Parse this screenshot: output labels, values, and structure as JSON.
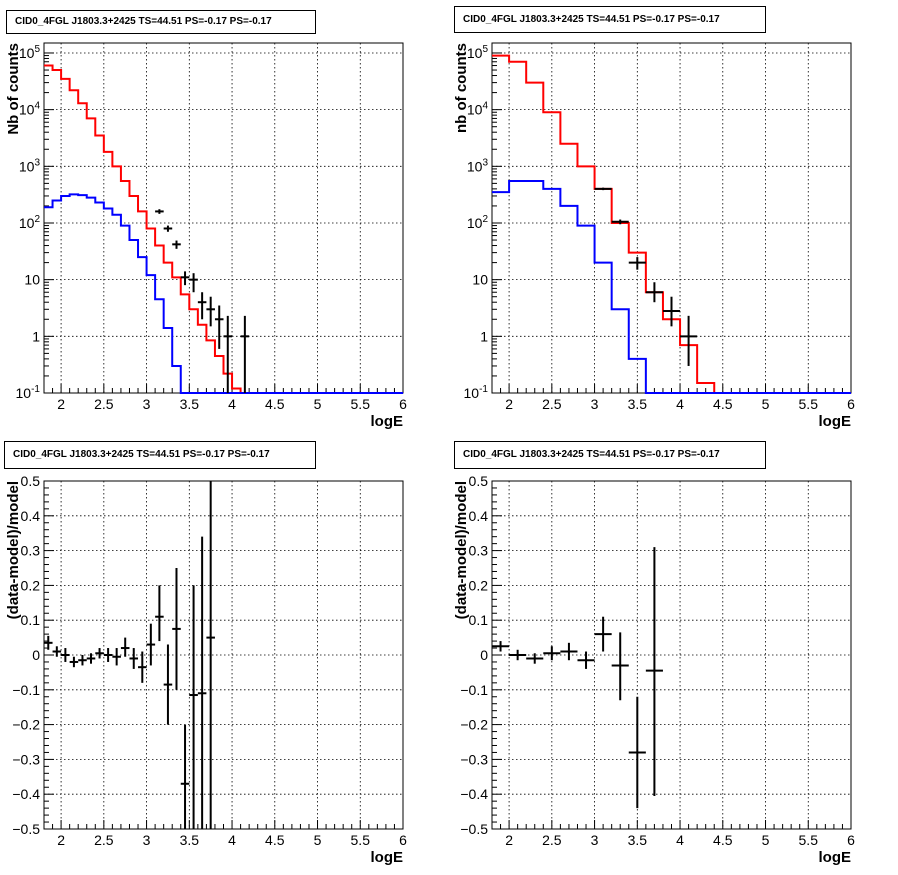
{
  "chart_data": [
    {
      "type": "line",
      "title": "CID0_4FGL J1803.3+2425 TS=44.51 PS=-0.17 PS=-0.17",
      "xlabel": "logE",
      "ylabel": "Nb of counts",
      "xlim": [
        1.8,
        6.0
      ],
      "ylim": [
        0.1,
        150000
      ],
      "yscale": "log",
      "grid": true,
      "x_ticks": [
        "2",
        "2.5",
        "3",
        "3.5",
        "4",
        "4.5",
        "5",
        "5.5",
        "6"
      ],
      "y_ticks": [
        "10^-1",
        "1",
        "10",
        "10^2",
        "10^3",
        "10^4",
        "10^5"
      ],
      "series": [
        {
          "name": "",
          "color": "#ff0000",
          "style": "step",
          "bin_edges": [
            1.8,
            1.9,
            2.0,
            2.1,
            2.2,
            2.3,
            2.4,
            2.5,
            2.6,
            2.7,
            2.8,
            2.9,
            3.0,
            3.1,
            3.2,
            3.3,
            3.4,
            3.5,
            3.6,
            3.7,
            3.8,
            3.9,
            4.0,
            4.1,
            4.2,
            4.3,
            4.4,
            4.5,
            4.6,
            4.7,
            4.8,
            4.9,
            5.0,
            5.1,
            5.2,
            5.3,
            5.4,
            5.5,
            5.6,
            5.7,
            5.8,
            5.9,
            6.0
          ],
          "values": [
            60000,
            50000,
            35000,
            22000,
            13000,
            7000,
            3500,
            1800,
            1000,
            550,
            300,
            160,
            80,
            40,
            20,
            11,
            5.5,
            3,
            1.6,
            0.85,
            0.45,
            0.22,
            0.12,
            0.06,
            0.03,
            0.015,
            0.01,
            0.01,
            0.01,
            0.01,
            0.01,
            0.01,
            0.01,
            0.01,
            0.01,
            0.01,
            0.01,
            0.01,
            0.01,
            0.01,
            0.01,
            0.01
          ]
        },
        {
          "name": "",
          "color": "#0000ff",
          "style": "step",
          "bin_edges": [
            1.8,
            1.9,
            2.0,
            2.1,
            2.2,
            2.3,
            2.4,
            2.5,
            2.6,
            2.7,
            2.8,
            2.9,
            3.0,
            3.1,
            3.2,
            3.3,
            3.4,
            3.5,
            3.6,
            3.7,
            3.8,
            3.9,
            4.0,
            4.1,
            4.2,
            4.3,
            4.4,
            4.5,
            4.6,
            4.7,
            4.8,
            4.9,
            5.0,
            5.1,
            5.2,
            5.3,
            5.4,
            5.5,
            5.6,
            5.7,
            5.8,
            5.9,
            6.0
          ],
          "values": [
            190,
            250,
            300,
            320,
            310,
            280,
            230,
            180,
            140,
            90,
            50,
            25,
            12,
            4.5,
            1.4,
            0.3,
            0.05,
            0.01,
            0.01,
            0.01,
            0.01,
            0.01,
            0.01,
            0.01,
            0.01,
            0.01,
            0.01,
            0.01,
            0.01,
            0.01,
            0.01,
            0.01,
            0.01,
            0.01,
            0.01,
            0.01,
            0.01,
            0.01,
            0.01,
            0.01,
            0.01,
            0.01
          ]
        },
        {
          "name": "",
          "color": "#000000",
          "style": "points",
          "points": [
            {
              "x": 3.15,
              "y": 160,
              "lo": 145,
              "hi": 175,
              "xerr": 0.05
            },
            {
              "x": 3.25,
              "y": 80,
              "lo": 70,
              "hi": 90,
              "xerr": 0.05
            },
            {
              "x": 3.35,
              "y": 42,
              "lo": 35,
              "hi": 49,
              "xerr": 0.05
            },
            {
              "x": 3.45,
              "y": 11,
              "lo": 8,
              "hi": 14,
              "xerr": 0.05
            },
            {
              "x": 3.55,
              "y": 10,
              "lo": 6,
              "hi": 13,
              "xerr": 0.05
            },
            {
              "x": 3.65,
              "y": 4,
              "lo": 2,
              "hi": 6,
              "xerr": 0.05
            },
            {
              "x": 3.75,
              "y": 3,
              "lo": 1.5,
              "hi": 5,
              "xerr": 0.05
            },
            {
              "x": 3.85,
              "y": 2,
              "lo": 0.6,
              "hi": 3.5,
              "xerr": 0.05
            },
            {
              "x": 3.95,
              "y": 1,
              "lo": 0.1,
              "hi": 2.3,
              "xerr": 0.05
            },
            {
              "x": 4.15,
              "y": 1,
              "lo": 0.1,
              "hi": 2.3,
              "xerr": 0.05
            }
          ]
        }
      ]
    },
    {
      "type": "line",
      "title": "CID0_4FGL J1803.3+2425 TS=44.51 PS=-0.17 PS=-0.17",
      "xlabel": "logE",
      "ylabel": "nb of counts",
      "xlim": [
        1.8,
        6.0
      ],
      "ylim": [
        0.1,
        150000
      ],
      "yscale": "log",
      "grid": true,
      "x_ticks": [
        "2",
        "2.5",
        "3",
        "3.5",
        "4",
        "4.5",
        "5",
        "5.5",
        "6"
      ],
      "y_ticks": [
        "10^-1",
        "1",
        "10",
        "10^2",
        "10^3",
        "10^4",
        "10^5"
      ],
      "series": [
        {
          "name": "",
          "color": "#ff0000",
          "style": "step",
          "bin_edges": [
            1.8,
            2.0,
            2.2,
            2.4,
            2.6,
            2.8,
            3.0,
            3.2,
            3.4,
            3.6,
            3.8,
            4.0,
            4.2,
            4.4,
            4.6,
            4.8,
            5.0,
            5.2,
            5.4,
            5.6,
            5.8,
            6.0
          ],
          "values": [
            90000,
            70000,
            30000,
            9000,
            2500,
            1000,
            400,
            100,
            30,
            6,
            2,
            0.7,
            0.15,
            0.01,
            0.01,
            0.01,
            0.01,
            0.01,
            0.01,
            0.01,
            0.01
          ]
        },
        {
          "name": "",
          "color": "#0000ff",
          "style": "step",
          "bin_edges": [
            1.8,
            2.0,
            2.2,
            2.4,
            2.6,
            2.8,
            3.0,
            3.2,
            3.4,
            3.6,
            3.8,
            4.0,
            4.2,
            4.4,
            4.6,
            4.8,
            5.0,
            5.2,
            5.4,
            5.6,
            5.8,
            6.0
          ],
          "values": [
            350,
            550,
            550,
            400,
            200,
            90,
            20,
            3,
            0.4,
            0.1,
            0.1,
            0.1,
            0.1,
            0.1,
            0.1,
            0.1,
            0.1,
            0.1,
            0.1,
            0.1,
            0.1
          ]
        },
        {
          "name": "",
          "color": "#000000",
          "style": "points",
          "points": [
            {
              "x": 3.1,
              "y": 400,
              "lo": 380,
              "hi": 420,
              "xerr": 0.1
            },
            {
              "x": 3.3,
              "y": 105,
              "lo": 95,
              "hi": 115,
              "xerr": 0.1
            },
            {
              "x": 3.5,
              "y": 20,
              "lo": 15,
              "hi": 25,
              "xerr": 0.1
            },
            {
              "x": 3.7,
              "y": 6,
              "lo": 4,
              "hi": 9,
              "xerr": 0.1
            },
            {
              "x": 3.9,
              "y": 2.8,
              "lo": 1.5,
              "hi": 5,
              "xerr": 0.1
            },
            {
              "x": 4.1,
              "y": 1,
              "lo": 0.3,
              "hi": 2.3,
              "xerr": 0.1
            }
          ]
        }
      ]
    },
    {
      "type": "scatter",
      "title": "CID0_4FGL J1803.3+2425 TS=44.51 PS=-0.17 PS=-0.17",
      "xlabel": "logE",
      "ylabel": "(data-model)/model",
      "xlim": [
        1.8,
        6.0
      ],
      "ylim": [
        -0.5,
        0.5
      ],
      "grid": true,
      "x_ticks": [
        "2",
        "2.5",
        "3",
        "3.5",
        "4",
        "4.5",
        "5",
        "5.5",
        "6"
      ],
      "y_ticks": [
        "−0.5",
        "−0.4",
        "−0.3",
        "−0.2",
        "−0.1",
        "0",
        "0.1",
        "0.2",
        "0.3",
        "0.4",
        "0.5"
      ],
      "points": [
        {
          "x": 1.85,
          "y": 0.035,
          "lo": 0.015,
          "hi": 0.055,
          "xerr": 0.05
        },
        {
          "x": 1.95,
          "y": 0.01,
          "lo": -0.005,
          "hi": 0.025,
          "xerr": 0.05
        },
        {
          "x": 2.05,
          "y": 0.0,
          "lo": -0.02,
          "hi": 0.02,
          "xerr": 0.05
        },
        {
          "x": 2.15,
          "y": -0.02,
          "lo": -0.035,
          "hi": -0.005,
          "xerr": 0.05
        },
        {
          "x": 2.25,
          "y": -0.015,
          "lo": -0.03,
          "hi": 0.0,
          "xerr": 0.05
        },
        {
          "x": 2.35,
          "y": -0.01,
          "lo": -0.025,
          "hi": 0.005,
          "xerr": 0.05
        },
        {
          "x": 2.45,
          "y": 0.005,
          "lo": -0.01,
          "hi": 0.02,
          "xerr": 0.05
        },
        {
          "x": 2.55,
          "y": 0.0,
          "lo": -0.02,
          "hi": 0.02,
          "xerr": 0.05
        },
        {
          "x": 2.65,
          "y": -0.005,
          "lo": -0.03,
          "hi": 0.02,
          "xerr": 0.05
        },
        {
          "x": 2.75,
          "y": 0.02,
          "lo": -0.005,
          "hi": 0.05,
          "xerr": 0.05
        },
        {
          "x": 2.85,
          "y": -0.01,
          "lo": -0.04,
          "hi": 0.02,
          "xerr": 0.05
        },
        {
          "x": 2.95,
          "y": -0.035,
          "lo": -0.08,
          "hi": 0.01,
          "xerr": 0.05
        },
        {
          "x": 3.05,
          "y": 0.03,
          "lo": -0.03,
          "hi": 0.09,
          "xerr": 0.05
        },
        {
          "x": 3.15,
          "y": 0.11,
          "lo": 0.04,
          "hi": 0.2,
          "xerr": 0.05
        },
        {
          "x": 3.25,
          "y": -0.085,
          "lo": -0.2,
          "hi": 0.03,
          "xerr": 0.05
        },
        {
          "x": 3.35,
          "y": 0.075,
          "lo": -0.1,
          "hi": 0.25,
          "xerr": 0.05
        },
        {
          "x": 3.45,
          "y": -0.37,
          "lo": -0.5,
          "hi": -0.2,
          "xerr": 0.05
        },
        {
          "x": 3.55,
          "y": -0.115,
          "lo": -0.5,
          "hi": 0.2,
          "xerr": 0.05
        },
        {
          "x": 3.65,
          "y": -0.11,
          "lo": -0.5,
          "hi": 0.34,
          "xerr": 0.05
        },
        {
          "x": 3.75,
          "y": 0.05,
          "lo": -0.5,
          "hi": 0.5,
          "xerr": 0.05
        }
      ]
    },
    {
      "type": "scatter",
      "title": "CID0_4FGL J1803.3+2425 TS=44.51 PS=-0.17 PS=-0.17",
      "xlabel": "logE",
      "ylabel": "(data-model)/model",
      "xlim": [
        1.8,
        6.0
      ],
      "ylim": [
        -0.5,
        0.5
      ],
      "grid": true,
      "x_ticks": [
        "2",
        "2.5",
        "3",
        "3.5",
        "4",
        "4.5",
        "5",
        "5.5",
        "6"
      ],
      "y_ticks": [
        "−0.5",
        "−0.4",
        "−0.3",
        "−0.2",
        "−0.1",
        "0",
        "0.1",
        "0.2",
        "0.3",
        "0.4",
        "0.5"
      ],
      "points": [
        {
          "x": 1.9,
          "y": 0.025,
          "lo": 0.01,
          "hi": 0.04,
          "xerr": 0.1
        },
        {
          "x": 2.1,
          "y": 0.0,
          "lo": -0.015,
          "hi": 0.015,
          "xerr": 0.1
        },
        {
          "x": 2.3,
          "y": -0.01,
          "lo": -0.025,
          "hi": 0.005,
          "xerr": 0.1
        },
        {
          "x": 2.5,
          "y": 0.005,
          "lo": -0.015,
          "hi": 0.025,
          "xerr": 0.1
        },
        {
          "x": 2.7,
          "y": 0.01,
          "lo": -0.015,
          "hi": 0.035,
          "xerr": 0.1
        },
        {
          "x": 2.9,
          "y": -0.015,
          "lo": -0.04,
          "hi": 0.01,
          "xerr": 0.1
        },
        {
          "x": 3.1,
          "y": 0.06,
          "lo": 0.01,
          "hi": 0.11,
          "xerr": 0.1
        },
        {
          "x": 3.3,
          "y": -0.03,
          "lo": -0.13,
          "hi": 0.065,
          "xerr": 0.1
        },
        {
          "x": 3.5,
          "y": -0.28,
          "lo": -0.44,
          "hi": -0.12,
          "xerr": 0.1
        },
        {
          "x": 3.7,
          "y": -0.045,
          "lo": -0.405,
          "hi": 0.31,
          "xerr": 0.1
        }
      ]
    }
  ]
}
